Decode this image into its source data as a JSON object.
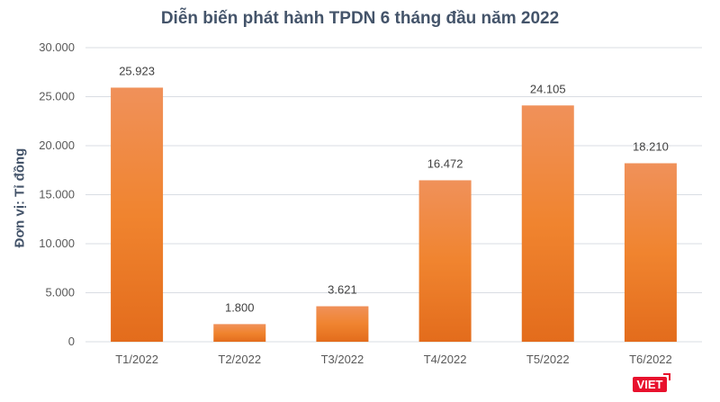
{
  "chart_data": {
    "type": "bar",
    "title": "Diễn biến phát hành TPDN 6 tháng đầu năm 2022",
    "ylabel": "Đơn vị: Tỉ đồng",
    "xlabel": "",
    "categories": [
      "T1/2022",
      "T2/2022",
      "T3/2022",
      "T4/2022",
      "T5/2022",
      "T6/2022"
    ],
    "values": [
      25923,
      1800,
      3621,
      16472,
      24105,
      18210
    ],
    "data_labels": [
      "25.923",
      "1.800",
      "3.621",
      "16.472",
      "24.105",
      "18.210"
    ],
    "ylim": [
      0,
      30000
    ],
    "yticks": [
      0,
      5000,
      10000,
      15000,
      20000,
      25000,
      30000
    ],
    "ytick_labels": [
      "0",
      "5.000",
      "10.000",
      "15.000",
      "20.000",
      "25.000",
      "30.000"
    ],
    "grid": true,
    "bar_color_top": "#f0915a",
    "bar_color_bottom": "#e36c1c"
  },
  "logo": "VIET"
}
